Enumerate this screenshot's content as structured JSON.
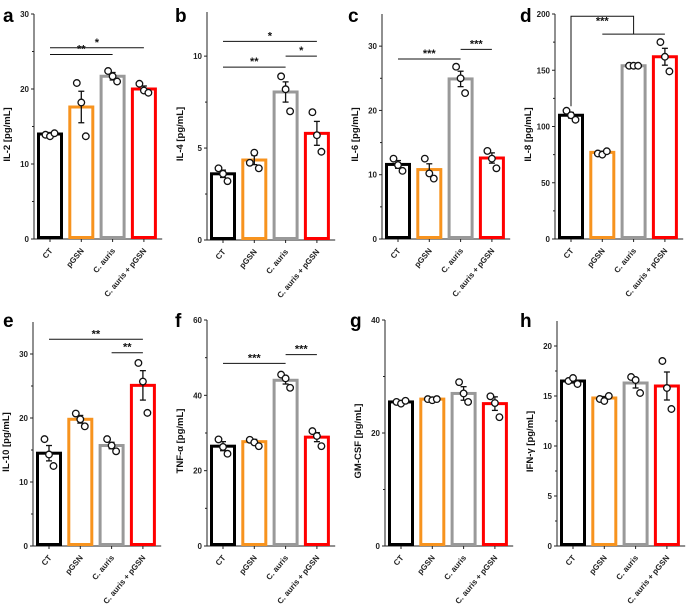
{
  "chart_data": [
    {
      "type": "bar",
      "panel": "a",
      "ylabel": "IL-2 [pg/mL]",
      "ylim": [
        0,
        30
      ],
      "ticks": [
        0,
        10,
        20,
        30
      ],
      "categories": [
        "CT",
        "pGSN",
        "C. auris",
        "C. auris + pGSN"
      ],
      "values": [
        14,
        17.6,
        21.7,
        20
      ],
      "errors": [
        0.2,
        2.1,
        0.5,
        0.4
      ],
      "points": [
        [
          13.9,
          13.7,
          14.1
        ],
        [
          20.8,
          18.2,
          13.7
        ],
        [
          22.4,
          21.7,
          21.0
        ],
        [
          20.7,
          19.8,
          19.5
        ]
      ],
      "significance": [
        {
          "from": 0,
          "to": 2,
          "y": 24.6,
          "label": "**"
        },
        {
          "from": 0,
          "to": 3,
          "y": 25.5,
          "label": "*"
        }
      ]
    },
    {
      "type": "bar",
      "panel": "b",
      "ylabel": "IL-4 [pg/mL]",
      "ylim": [
        0,
        12.4
      ],
      "ticks": [
        0,
        5,
        10
      ],
      "categories": [
        "CT",
        "pGSN",
        "C. auris",
        "C. auris + pGSN"
      ],
      "values": [
        3.6,
        4.35,
        8.05,
        5.8
      ],
      "errors": [
        0.2,
        0.25,
        0.55,
        0.65
      ],
      "points": [
        [
          3.9,
          3.6,
          3.2
        ],
        [
          4.2,
          4.75,
          3.9
        ],
        [
          8.9,
          8.2,
          7.0
        ],
        [
          6.95,
          5.7,
          4.8
        ]
      ],
      "significance": [
        {
          "from": 0,
          "to": 2,
          "y": 9.4,
          "label": "**"
        },
        {
          "from": 2,
          "to": 3,
          "y": 10.0,
          "label": "*"
        },
        {
          "from": 0,
          "to": 3,
          "y": 10.8,
          "label": "*"
        }
      ]
    },
    {
      "type": "bar",
      "panel": "c",
      "ylabel": "IL-6 [pg/mL]",
      "ylim": [
        0,
        35
      ],
      "ticks": [
        0,
        10,
        20,
        30
      ],
      "categories": [
        "CT",
        "pGSN",
        "C. auris",
        "C. auris + pGSN"
      ],
      "values": [
        11.6,
        10.8,
        24.9,
        12.6
      ],
      "errors": [
        0.6,
        0.9,
        1.2,
        0.8
      ],
      "points": [
        [
          12.5,
          11.5,
          10.6
        ],
        [
          12.5,
          10.2,
          9.4
        ],
        [
          26.8,
          25.0,
          22.7
        ],
        [
          13.7,
          12.5,
          11.0
        ]
      ],
      "significance": [
        {
          "from": 0,
          "to": 2,
          "y": 28,
          "label": "***"
        },
        {
          "from": 2,
          "to": 3,
          "y": 29.5,
          "label": "***"
        }
      ]
    },
    {
      "type": "bar",
      "panel": "d",
      "ylabel": "IL-8 [pg/mL]",
      "ylim": [
        0,
        200
      ],
      "ticks": [
        0,
        50,
        100,
        150,
        200
      ],
      "categories": [
        "CT",
        "pGSN",
        "C. auris",
        "C. auris + pGSN"
      ],
      "values": [
        110,
        77,
        154,
        162
      ],
      "errors": [
        2.5,
        1,
        0,
        7.5
      ],
      "points": [
        [
          114,
          110,
          106
        ],
        [
          76,
          75,
          78
        ],
        [
          154,
          154,
          154
        ],
        [
          175,
          162,
          149
        ]
      ],
      "significance": [
        {
          "from": 0,
          "to": [
            1,
            3
          ],
          "y": 198,
          "label": "***",
          "bracket": true
        }
      ]
    },
    {
      "type": "bar",
      "panel": "e",
      "ylabel": "IL-10 [pg/mL]",
      "ylim": [
        0,
        35
      ],
      "ticks": [
        0,
        10,
        20,
        30
      ],
      "categories": [
        "CT",
        "pGSN",
        "C. auris",
        "C. auris + pGSN"
      ],
      "values": [
        14.5,
        19.8,
        15.7,
        25.1
      ],
      "errors": [
        1.2,
        0.6,
        0.5,
        2.3
      ],
      "points": [
        [
          16.7,
          14.3,
          12.5
        ],
        [
          20.7,
          19.8,
          18.7
        ],
        [
          16.7,
          15.7,
          14.8
        ],
        [
          28.6,
          25.7,
          20.8
        ]
      ],
      "significance": [
        {
          "from": 0,
          "to": 3,
          "y": 32.3,
          "label": "**"
        },
        {
          "from": 2,
          "to": 3,
          "y": 30.2,
          "label": "**"
        }
      ]
    },
    {
      "type": "bar",
      "panel": "f",
      "ylabel": "TNF-α [pg/mL]",
      "ylim": [
        0,
        60
      ],
      "ticks": [
        0,
        20,
        40,
        60
      ],
      "categories": [
        "CT",
        "pGSN",
        "C. auris",
        "C. auris + pGSN"
      ],
      "values": [
        26.5,
        27.7,
        44,
        28.9
      ],
      "errors": [
        1.2,
        0.6,
        1.0,
        1.2
      ],
      "points": [
        [
          28.3,
          26.3,
          24.5
        ],
        [
          28.2,
          27.5,
          26.5
        ],
        [
          45.5,
          44.5,
          42.0
        ],
        [
          30.5,
          29.2,
          26.5
        ]
      ],
      "significance": [
        {
          "from": 0,
          "to": 2,
          "y": 48.5,
          "label": "***"
        },
        {
          "from": 2,
          "to": 3,
          "y": 50.8,
          "label": "***"
        }
      ]
    },
    {
      "type": "bar",
      "panel": "g",
      "ylabel": "GM-CSF [pg/mL]",
      "ylim": [
        0,
        40
      ],
      "ticks": [
        0,
        20,
        40
      ],
      "categories": [
        "CT",
        "pGSN",
        "C. auris",
        "C. auris + pGSN"
      ],
      "values": [
        25.5,
        26,
        27,
        25.2
      ],
      "errors": [
        0.2,
        0.1,
        1.2,
        1.2
      ],
      "points": [
        [
          25.5,
          25.2,
          25.7
        ],
        [
          26.0,
          25.8,
          26.0
        ],
        [
          29.0,
          27.0,
          25.5
        ],
        [
          26.5,
          25.3,
          22.8
        ]
      ],
      "significance": []
    },
    {
      "type": "bar",
      "panel": "h",
      "ylabel": "IFN-γ [pg/mL]",
      "ylim": [
        0,
        22.5
      ],
      "ticks": [
        0,
        5,
        10,
        15,
        20
      ],
      "categories": [
        "CT",
        "pGSN",
        "C. auris",
        "C. auris + pGSN"
      ],
      "values": [
        16.5,
        14.8,
        16.3,
        16
      ],
      "errors": [
        0.2,
        0.15,
        0.5,
        1.4
      ],
      "points": [
        [
          16.5,
          16.8,
          16.2
        ],
        [
          14.7,
          14.5,
          15.0
        ],
        [
          16.9,
          16.6,
          15.3
        ],
        [
          18.5,
          15.8,
          13.7
        ]
      ],
      "significance": []
    }
  ],
  "colors": [
    "#000000",
    "#f7931e",
    "#999999",
    "#ff0000"
  ]
}
